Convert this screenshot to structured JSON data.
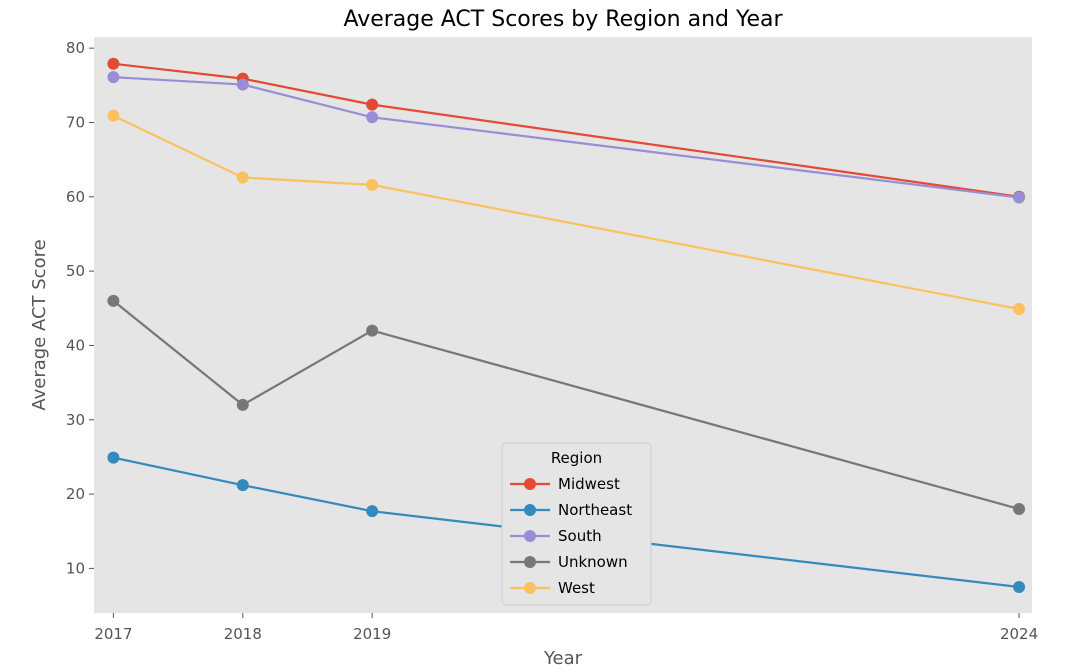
{
  "chart_data": {
    "type": "line",
    "title": "Average ACT Scores by Region and Year",
    "xlabel": "Year",
    "ylabel": "Average ACT Score",
    "x": [
      2017,
      2018,
      2019,
      2024
    ],
    "x_tick_labels": [
      "2017",
      "2018",
      "2019",
      "2024"
    ],
    "xlim": [
      2016.85,
      2024.1
    ],
    "ylim": [
      4,
      81.5
    ],
    "y_ticks": [
      10,
      20,
      30,
      40,
      50,
      60,
      70,
      80
    ],
    "y_tick_labels": [
      "10",
      "20",
      "30",
      "40",
      "50",
      "60",
      "70",
      "80"
    ],
    "grid": false,
    "legend": {
      "title": "Region",
      "placement": "bottom-center"
    },
    "series": [
      {
        "name": "Midwest",
        "color": "#E24A33",
        "values": [
          77.9,
          75.9,
          72.4,
          60.0
        ]
      },
      {
        "name": "Northeast",
        "color": "#348ABD",
        "values": [
          24.9,
          21.2,
          17.7,
          7.5
        ]
      },
      {
        "name": "South",
        "color": "#988ED5",
        "values": [
          76.1,
          75.1,
          70.7,
          59.9
        ]
      },
      {
        "name": "Unknown",
        "color": "#777777",
        "values": [
          46.0,
          32.0,
          42.0,
          18.0
        ]
      },
      {
        "name": "West",
        "color": "#FBC15E",
        "values": [
          70.9,
          62.6,
          61.6,
          44.9
        ]
      }
    ],
    "plot_background": "#E5E5E5"
  }
}
